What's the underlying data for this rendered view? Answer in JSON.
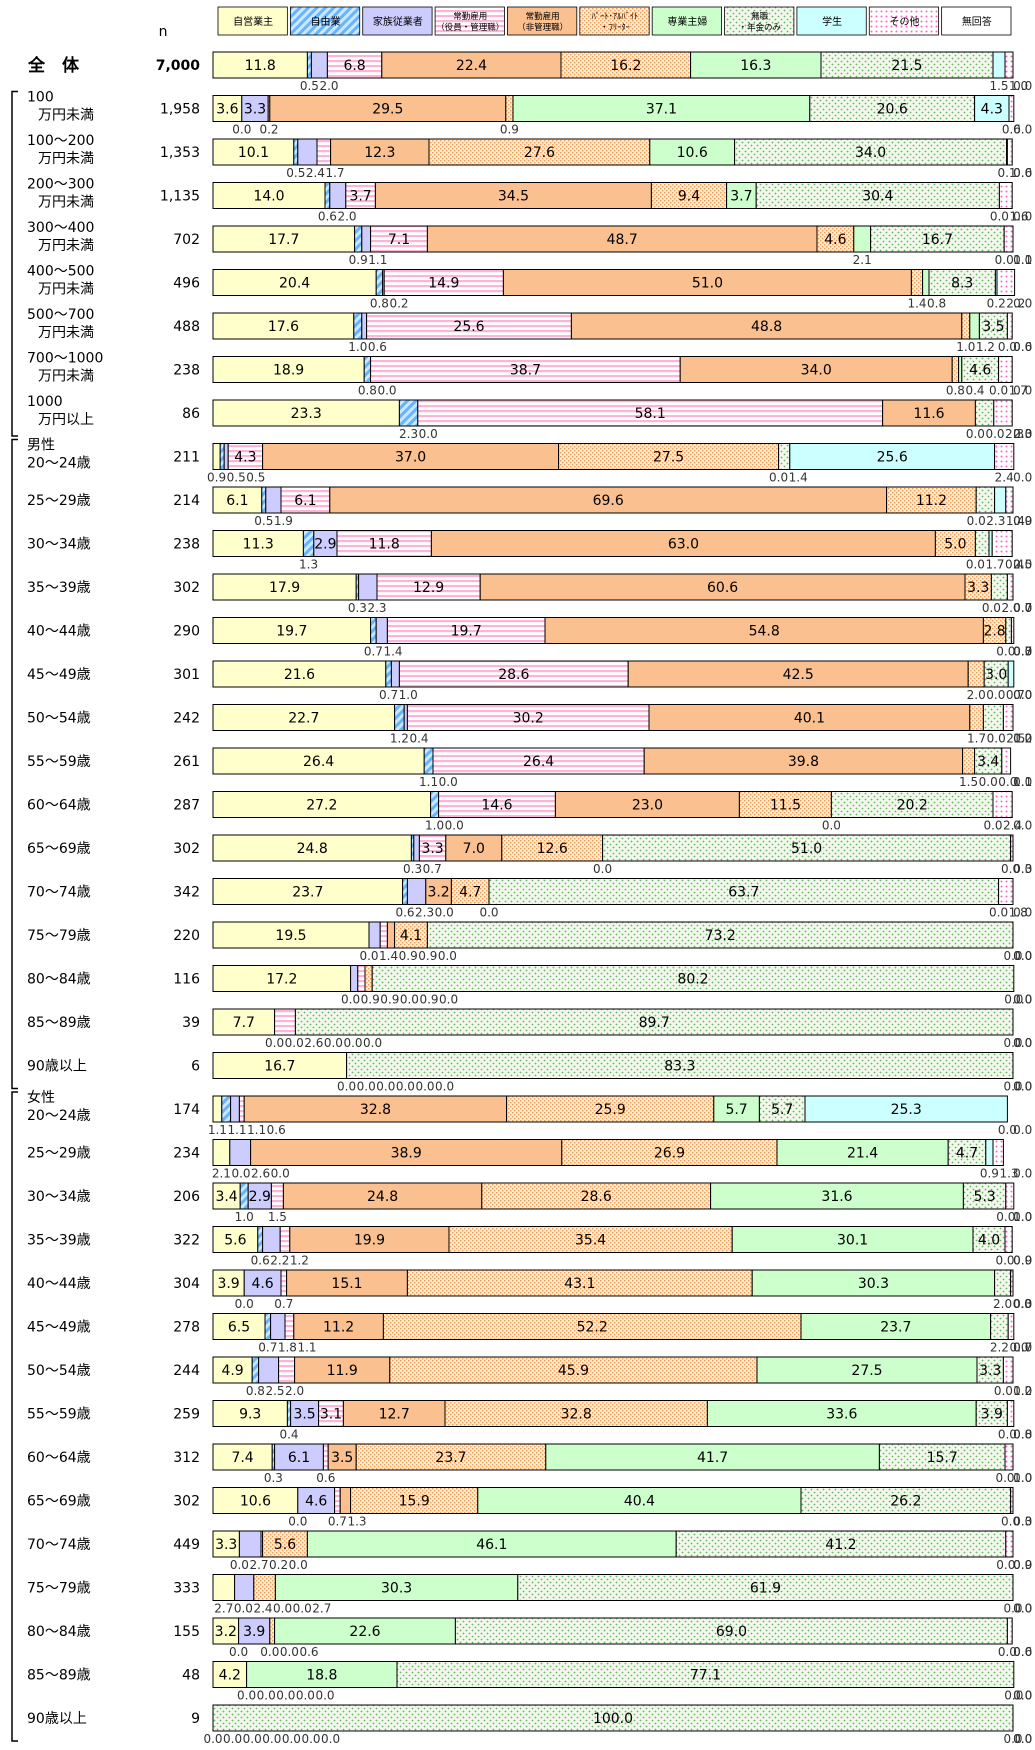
{
  "chart_data": {
    "type": "bar",
    "orientation": "horizontal",
    "stacked": true,
    "n_header": "n",
    "series": [
      {
        "name": "自営業主",
        "color": "#FFFFCC"
      },
      {
        "name": "自由業",
        "color": "#99CCFF"
      },
      {
        "name": "家族従業者",
        "color": "#CCCCFF"
      },
      {
        "name": "常勤雇用（役員・管理職）",
        "color": "#FFCCE6"
      },
      {
        "name": "常勤雇用（非管理職）",
        "color": "#FAC090"
      },
      {
        "name": "ﾊﾟｰﾄ･ｱﾙﾊﾞｲﾄ・ﾌﾘｰﾀｰ",
        "color": "#FDE9D9"
      },
      {
        "name": "専業主婦",
        "color": "#CCFFCC"
      },
      {
        "name": "無職・年金のみ",
        "color": "#EBF1DE"
      },
      {
        "name": "学生",
        "color": "#CCFFFF"
      },
      {
        "name": "その他",
        "color": "#FFFFFF"
      },
      {
        "name": "無回答",
        "color": "#FFFFFF"
      }
    ],
    "rows": [
      {
        "group": "total",
        "label": [
          "全　体"
        ],
        "n": "7,000",
        "values": [
          11.8,
          0.5,
          2.0,
          6.8,
          22.4,
          16.2,
          16.3,
          21.5,
          1.5,
          1.0,
          0.0
        ]
      },
      {
        "group": "income",
        "label": [
          "100",
          "万円未満"
        ],
        "n": "1,958",
        "values": [
          3.6,
          0.0,
          3.3,
          0.2,
          29.5,
          0.9,
          37.1,
          20.6,
          4.3,
          0.6,
          0.0
        ]
      },
      {
        "group": "income",
        "label": [
          "100～200",
          "万円未満"
        ],
        "n": "1,353",
        "values": [
          10.1,
          0.5,
          2.4,
          1.7,
          12.3,
          27.6,
          10.6,
          34.0,
          0.1,
          0.6,
          0.0
        ]
      },
      {
        "group": "income",
        "label": [
          "200～300",
          "万円未満"
        ],
        "n": "1,135",
        "values": [
          14.0,
          0.6,
          2.0,
          3.7,
          34.5,
          9.4,
          3.7,
          30.4,
          0.0,
          1.6,
          0.0
        ]
      },
      {
        "group": "income",
        "label": [
          "300～400",
          "万円未満"
        ],
        "n": "702",
        "values": [
          17.7,
          0.9,
          1.1,
          7.1,
          48.7,
          4.6,
          2.1,
          16.7,
          0.0,
          1.1,
          0.0
        ]
      },
      {
        "group": "income",
        "label": [
          "400～500",
          "万円未満"
        ],
        "n": "496",
        "values": [
          20.4,
          0.8,
          0.2,
          14.9,
          51.0,
          1.4,
          0.8,
          8.3,
          0.2,
          2.2,
          0.0
        ]
      },
      {
        "group": "income",
        "label": [
          "500～700",
          "万円未満"
        ],
        "n": "488",
        "values": [
          17.6,
          1.0,
          0.6,
          25.6,
          48.8,
          1.0,
          1.2,
          3.5,
          0.0,
          0.6,
          0.0
        ]
      },
      {
        "group": "income",
        "label": [
          "700～1000",
          "万円未満"
        ],
        "n": "238",
        "values": [
          18.9,
          0.8,
          0.0,
          38.7,
          34.0,
          0.8,
          0.4,
          4.6,
          0.0,
          1.7,
          0.0
        ]
      },
      {
        "group": "income",
        "label": [
          "1000",
          "万円以上"
        ],
        "n": "86",
        "values": [
          23.3,
          2.3,
          0.0,
          58.1,
          11.6,
          0.0,
          0.0,
          2.3,
          0.0,
          2.3,
          0.0
        ]
      },
      {
        "group": "male",
        "label": [
          "男性",
          "20～24歳"
        ],
        "n": "211",
        "values": [
          0.9,
          0.5,
          0.5,
          4.3,
          37.0,
          27.5,
          0.0,
          1.4,
          25.6,
          2.4,
          0.0
        ]
      },
      {
        "group": "male",
        "label": [
          "25～29歳"
        ],
        "n": "214",
        "values": [
          6.1,
          0.5,
          1.9,
          6.1,
          69.6,
          11.2,
          0.0,
          2.3,
          1.4,
          0.9,
          0.0
        ]
      },
      {
        "group": "male",
        "label": [
          "30～34歳"
        ],
        "n": "238",
        "values": [
          11.3,
          1.3,
          2.9,
          11.8,
          63.0,
          5.0,
          0.0,
          1.7,
          0.4,
          2.5,
          0.0
        ]
      },
      {
        "group": "male",
        "label": [
          "35～39歳"
        ],
        "n": "302",
        "values": [
          17.9,
          0.3,
          2.3,
          12.9,
          60.6,
          3.3,
          0.0,
          2.0,
          0.0,
          0.7,
          0.0
        ]
      },
      {
        "group": "male",
        "label": [
          "40～44歳"
        ],
        "n": "290",
        "values": [
          19.7,
          0.7,
          1.4,
          19.7,
          54.8,
          2.8,
          0.0,
          0.7,
          0.0,
          0.3,
          0.0
        ]
      },
      {
        "group": "male",
        "label": [
          "45～49歳"
        ],
        "n": "301",
        "values": [
          21.6,
          0.7,
          1.0,
          28.6,
          42.5,
          2.0,
          0.0,
          3.0,
          0.7,
          0.0,
          0.0
        ]
      },
      {
        "group": "male",
        "label": [
          "50～54歳"
        ],
        "n": "242",
        "values": [
          22.7,
          1.2,
          0.4,
          30.2,
          40.1,
          1.7,
          0.0,
          2.5,
          0.0,
          1.2,
          0.0
        ]
      },
      {
        "group": "male",
        "label": [
          "55～59歳"
        ],
        "n": "261",
        "values": [
          26.4,
          1.1,
          0.0,
          26.4,
          39.8,
          1.5,
          0.0,
          3.4,
          0.0,
          1.1,
          0.0
        ]
      },
      {
        "group": "male",
        "label": [
          "60～64歳"
        ],
        "n": "287",
        "values": [
          27.2,
          1.0,
          0.0,
          14.6,
          23.0,
          11.5,
          0.0,
          20.2,
          0.0,
          2.4,
          0.0
        ]
      },
      {
        "group": "male",
        "label": [
          "65～69歳"
        ],
        "n": "302",
        "values": [
          24.8,
          0.3,
          0.7,
          3.3,
          7.0,
          12.6,
          0.0,
          51.0,
          0.0,
          0.3,
          0.0
        ]
      },
      {
        "group": "male",
        "label": [
          "70～74歳"
        ],
        "n": "342",
        "values": [
          23.7,
          0.6,
          2.3,
          0.0,
          3.2,
          4.7,
          0.0,
          63.7,
          0.0,
          1.8,
          0.0
        ]
      },
      {
        "group": "male",
        "label": [
          "75～79歳"
        ],
        "n": "220",
        "values": [
          19.5,
          0.0,
          1.4,
          0.9,
          0.9,
          4.1,
          0.0,
          73.2,
          0.0,
          0.0,
          0.0
        ]
      },
      {
        "group": "male",
        "label": [
          "80～84歳"
        ],
        "n": "116",
        "values": [
          17.2,
          0.0,
          0.9,
          0.9,
          0.0,
          0.9,
          0.0,
          80.2,
          0.0,
          0.0,
          0.0
        ]
      },
      {
        "group": "male",
        "label": [
          "85～89歳"
        ],
        "n": "39",
        "values": [
          7.7,
          0.0,
          0.0,
          2.6,
          0.0,
          0.0,
          0.0,
          89.7,
          0.0,
          0.0,
          0.0
        ]
      },
      {
        "group": "male",
        "label": [
          "90歳以上"
        ],
        "n": "6",
        "values": [
          16.7,
          0.0,
          0.0,
          0.0,
          0.0,
          0.0,
          0.0,
          83.3,
          0.0,
          0.0,
          0.0
        ]
      },
      {
        "group": "female",
        "label": [
          "女性",
          "20～24歳"
        ],
        "n": "174",
        "values": [
          1.1,
          1.1,
          1.1,
          0.6,
          32.8,
          25.9,
          5.7,
          5.7,
          25.3,
          0.0,
          0.0
        ]
      },
      {
        "group": "female",
        "label": [
          "25～29歳"
        ],
        "n": "234",
        "values": [
          2.1,
          0.0,
          2.6,
          0.0,
          38.9,
          26.9,
          21.4,
          4.7,
          0.9,
          1.3,
          0.0
        ]
      },
      {
        "group": "female",
        "label": [
          "30～34歳"
        ],
        "n": "206",
        "values": [
          3.4,
          1.0,
          2.9,
          1.5,
          24.8,
          28.6,
          31.6,
          5.3,
          0.0,
          1.0,
          0.0
        ]
      },
      {
        "group": "female",
        "label": [
          "35～39歳"
        ],
        "n": "322",
        "values": [
          5.6,
          0.6,
          2.2,
          1.2,
          19.9,
          35.4,
          30.1,
          4.0,
          0.0,
          0.9,
          0.0
        ]
      },
      {
        "group": "female",
        "label": [
          "40～44歳"
        ],
        "n": "304",
        "values": [
          3.9,
          0.0,
          4.6,
          0.7,
          15.1,
          43.1,
          30.3,
          2.0,
          0.0,
          0.3,
          0.0
        ]
      },
      {
        "group": "female",
        "label": [
          "45～49歳"
        ],
        "n": "278",
        "values": [
          6.5,
          0.7,
          1.8,
          1.1,
          11.2,
          52.2,
          23.7,
          2.2,
          0.0,
          0.7,
          0.0
        ]
      },
      {
        "group": "female",
        "label": [
          "50～54歳"
        ],
        "n": "244",
        "values": [
          4.9,
          0.8,
          2.5,
          2.0,
          11.9,
          45.9,
          27.5,
          3.3,
          0.0,
          1.2,
          0.0
        ]
      },
      {
        "group": "female",
        "label": [
          "55～59歳"
        ],
        "n": "259",
        "values": [
          9.3,
          0.4,
          3.5,
          3.1,
          12.7,
          32.8,
          33.6,
          3.9,
          0.0,
          0.8,
          0.0
        ]
      },
      {
        "group": "female",
        "label": [
          "60～64歳"
        ],
        "n": "312",
        "values": [
          7.4,
          0.3,
          6.1,
          0.6,
          3.5,
          23.7,
          41.7,
          15.7,
          0.0,
          1.0,
          0.0
        ]
      },
      {
        "group": "female",
        "label": [
          "65～69歳"
        ],
        "n": "302",
        "values": [
          10.6,
          0.0,
          4.6,
          0.7,
          1.3,
          15.9,
          40.4,
          26.2,
          0.0,
          0.3,
          0.0
        ]
      },
      {
        "group": "female",
        "label": [
          "70～74歳"
        ],
        "n": "449",
        "values": [
          3.3,
          0.0,
          2.7,
          0.2,
          0.0,
          5.6,
          46.1,
          41.2,
          0.0,
          0.9,
          0.0
        ]
      },
      {
        "group": "female",
        "label": [
          "75～79歳"
        ],
        "n": "333",
        "values": [
          2.7,
          0.0,
          2.4,
          0.0,
          0.0,
          2.7,
          30.3,
          61.9,
          0.0,
          0.0,
          0.0
        ]
      },
      {
        "group": "female",
        "label": [
          "80～84歳"
        ],
        "n": "155",
        "values": [
          3.2,
          0.0,
          3.9,
          0.0,
          0.0,
          0.6,
          22.6,
          69.0,
          0.0,
          0.6,
          0.0
        ]
      },
      {
        "group": "female",
        "label": [
          "85～89歳"
        ],
        "n": "48",
        "values": [
          4.2,
          0.0,
          0.0,
          0.0,
          0.0,
          0.0,
          18.8,
          77.1,
          0.0,
          0.0,
          0.0
        ]
      },
      {
        "group": "female",
        "label": [
          "90歳以上"
        ],
        "n": "9",
        "values": [
          0.0,
          0.0,
          0.0,
          0.0,
          0.0,
          0.0,
          0.0,
          100.0,
          0.0,
          0.0,
          0.0
        ]
      }
    ]
  }
}
